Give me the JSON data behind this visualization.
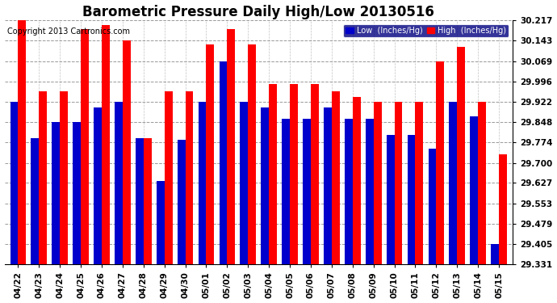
{
  "title": "Barometric Pressure Daily High/Low 20130516",
  "copyright": "Copyright 2013 Cartronics.com",
  "legend_low": "Low  (Inches/Hg)",
  "legend_high": "High  (Inches/Hg)",
  "dates": [
    "04/22",
    "04/23",
    "04/24",
    "04/25",
    "04/26",
    "04/27",
    "04/28",
    "04/29",
    "04/30",
    "05/01",
    "05/02",
    "05/03",
    "05/04",
    "05/05",
    "05/06",
    "05/07",
    "05/08",
    "05/09",
    "05/10",
    "05/11",
    "05/12",
    "05/13",
    "05/14",
    "05/15"
  ],
  "high_values": [
    30.217,
    29.96,
    29.96,
    30.185,
    30.2,
    30.143,
    29.79,
    29.96,
    29.96,
    30.13,
    30.185,
    30.13,
    29.985,
    29.985,
    29.985,
    29.96,
    29.94,
    29.922,
    29.922,
    29.922,
    30.069,
    30.12,
    29.922,
    29.73
  ],
  "low_values": [
    29.922,
    29.79,
    29.848,
    29.848,
    29.9,
    29.922,
    29.79,
    29.635,
    29.785,
    29.922,
    30.069,
    29.922,
    29.9,
    29.86,
    29.86,
    29.9,
    29.86,
    29.86,
    29.8,
    29.8,
    29.75,
    29.922,
    29.87,
    29.405
  ],
  "bar_color_low": "#0000cc",
  "bar_color_high": "#ff0000",
  "bg_color": "#ffffff",
  "plot_bg_color": "#ffffff",
  "grid_color": "#999999",
  "yticks": [
    30.217,
    30.143,
    30.069,
    29.996,
    29.922,
    29.848,
    29.774,
    29.7,
    29.627,
    29.553,
    29.479,
    29.405,
    29.331
  ],
  "ymin": 29.331,
  "ymax": 30.217,
  "title_fontsize": 12,
  "copyright_fontsize": 7,
  "tick_fontsize": 7.5,
  "bar_width": 0.38
}
